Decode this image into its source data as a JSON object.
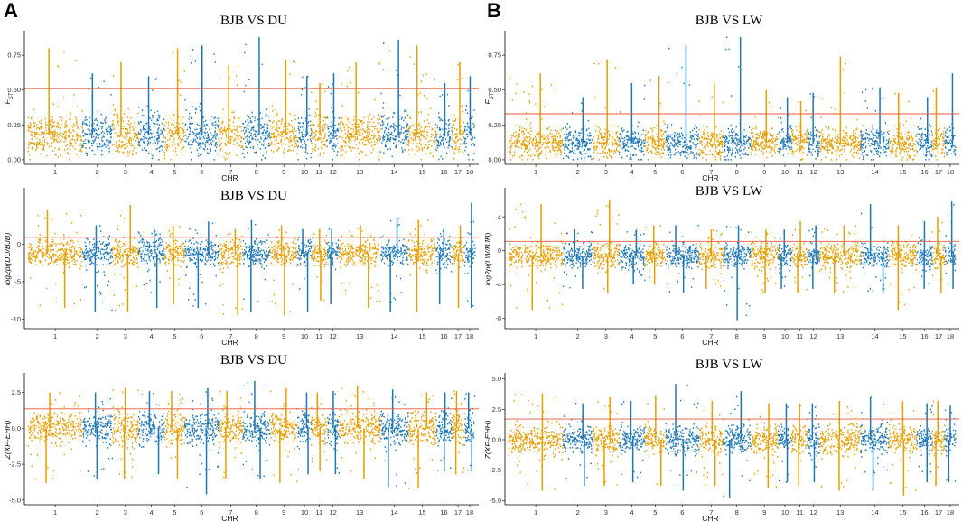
{
  "figure": {
    "panel_letters": [
      "A",
      "B"
    ]
  },
  "colors": {
    "series_odd": "#E69F00",
    "series_even": "#1F78B4",
    "threshold": "#E8553A",
    "axis": "#000000"
  },
  "chart_data": [
    {
      "type": "scatter",
      "subtype": "manhattan",
      "title": "BJB VS DU",
      "xlabel": "CHR",
      "ylabel": "FST",
      "ylabel_main": "F",
      "ylabel_sub": "ST",
      "chromosomes": [
        "1",
        "2",
        "3",
        "4",
        "5",
        "6",
        "7",
        "8",
        "9",
        "10",
        "11",
        "12",
        "13",
        "14",
        "15",
        "16",
        "17",
        "18"
      ],
      "chromosome_sizes": [
        274,
        151,
        132,
        130,
        104,
        170,
        121,
        138,
        139,
        69,
        79,
        61,
        208,
        141,
        140,
        79,
        63,
        55
      ],
      "yticks": [
        0.0,
        0.25,
        0.5,
        0.75
      ],
      "ytick_labels": [
        "0.00",
        "0.25",
        "0.50",
        "0.75"
      ],
      "ylim": [
        -0.02,
        0.9
      ],
      "threshold": 0.51,
      "base_mean": 0.18,
      "base_spread": 0.14,
      "chr_peaks": [
        0.8,
        0.62,
        0.7,
        0.6,
        0.8,
        0.82,
        0.68,
        0.88,
        0.72,
        0.6,
        0.55,
        0.62,
        0.7,
        0.86,
        0.82,
        0.55,
        0.7,
        0.6
      ]
    },
    {
      "type": "scatter",
      "subtype": "manhattan",
      "title": "BJB VS LW",
      "xlabel": "CHR",
      "ylabel": "FST",
      "ylabel_main": "F",
      "ylabel_sub": "ST",
      "chromosomes": [
        "1",
        "2",
        "3",
        "4",
        "5",
        "6",
        "7",
        "8",
        "9",
        "10",
        "11",
        "12",
        "13",
        "14",
        "15",
        "16",
        "17",
        "18"
      ],
      "chromosome_sizes": [
        274,
        151,
        132,
        130,
        104,
        170,
        121,
        138,
        139,
        69,
        79,
        61,
        208,
        141,
        140,
        79,
        63,
        55
      ],
      "yticks": [
        0.0,
        0.25,
        0.5,
        0.75
      ],
      "ytick_labels": [
        "0.00",
        "0.25",
        "0.50",
        "0.75"
      ],
      "ylim": [
        -0.02,
        0.9
      ],
      "threshold": 0.33,
      "base_mean": 0.12,
      "base_spread": 0.1,
      "chr_peaks": [
        0.62,
        0.45,
        0.72,
        0.55,
        0.6,
        0.82,
        0.55,
        0.88,
        0.5,
        0.45,
        0.42,
        0.48,
        0.74,
        0.52,
        0.48,
        0.45,
        0.52,
        0.62
      ]
    },
    {
      "type": "scatter",
      "subtype": "manhattan",
      "title": "BJB VS DU",
      "xlabel": "CHR",
      "ylabel": "log2pi(DU/BJB)",
      "chromosomes": [
        "1",
        "2",
        "3",
        "4",
        "5",
        "6",
        "7",
        "8",
        "9",
        "10",
        "11",
        "12",
        "13",
        "14",
        "15",
        "16",
        "17",
        "18"
      ],
      "chromosome_sizes": [
        274,
        151,
        132,
        130,
        104,
        170,
        121,
        138,
        139,
        69,
        79,
        61,
        208,
        141,
        140,
        79,
        63,
        55
      ],
      "yticks": [
        -10,
        -5,
        0
      ],
      "ytick_labels": [
        "-10",
        "-5",
        "0"
      ],
      "ylim": [
        -11,
        7
      ],
      "threshold": 0.9,
      "base_mean": -1.2,
      "base_spread": 1.6,
      "chr_peaks": [
        4.5,
        2.5,
        5.2,
        2.0,
        2.5,
        3.0,
        2.0,
        3.2,
        2.5,
        2.0,
        2.0,
        2.0,
        2.5,
        3.5,
        3.2,
        2.0,
        2.5,
        5.5
      ],
      "chr_troughs": [
        -8.5,
        -9.0,
        -9.0,
        -8.5,
        -8.0,
        -8.5,
        -9.5,
        -9.0,
        -9.5,
        -9.0,
        -7.5,
        -8.0,
        -8.5,
        -9.0,
        -9.0,
        -8.0,
        -8.5,
        -8.5
      ]
    },
    {
      "type": "scatter",
      "subtype": "manhattan",
      "title": "BJB VS LW",
      "xlabel": "CHR",
      "ylabel": "log2pi(LW/BJB)",
      "chromosomes": [
        "1",
        "2",
        "3",
        "4",
        "5",
        "6",
        "7",
        "8",
        "9",
        "10",
        "11",
        "12",
        "13",
        "14",
        "15",
        "16",
        "17",
        "18"
      ],
      "chromosome_sizes": [
        274,
        151,
        132,
        130,
        104,
        170,
        121,
        138,
        139,
        69,
        79,
        61,
        208,
        141,
        140,
        79,
        63,
        55
      ],
      "yticks": [
        -8,
        -4,
        0,
        4
      ],
      "ytick_labels": [
        "-8",
        "-4",
        "0",
        "4"
      ],
      "ylim": [
        -9,
        7
      ],
      "threshold": 1.1,
      "base_mean": -0.6,
      "base_spread": 1.3,
      "chr_peaks": [
        5.5,
        2.5,
        6.0,
        2.5,
        3.0,
        3.0,
        2.5,
        3.0,
        2.5,
        2.5,
        3.5,
        3.0,
        3.0,
        5.5,
        3.0,
        3.5,
        4.0,
        5.8
      ],
      "chr_troughs": [
        -7.0,
        -4.5,
        -5.0,
        -4.0,
        -4.0,
        -5.0,
        -4.5,
        -8.2,
        -5.0,
        -4.5,
        -5.0,
        -4.5,
        -5.0,
        -5.0,
        -7.0,
        -4.5,
        -5.0,
        -4.5
      ]
    },
    {
      "type": "scatter",
      "subtype": "manhattan",
      "title": "BJB VS DU",
      "xlabel": "CHR",
      "ylabel": "Z(XP-EHH)",
      "chromosomes": [
        "1",
        "2",
        "3",
        "4",
        "5",
        "6",
        "7",
        "8",
        "9",
        "10",
        "11",
        "12",
        "13",
        "14",
        "15",
        "16",
        "17",
        "18"
      ],
      "chromosome_sizes": [
        274,
        151,
        132,
        130,
        104,
        170,
        121,
        138,
        139,
        69,
        79,
        61,
        208,
        141,
        140,
        79,
        63,
        55
      ],
      "yticks": [
        -5.0,
        -2.5,
        0.0,
        2.5
      ],
      "ytick_labels": [
        "-5.0",
        "-2.5",
        "0.0",
        "2.5"
      ],
      "ylim": [
        -5.2,
        3.6
      ],
      "threshold": 1.35,
      "base_mean": 0.0,
      "base_spread": 1.0,
      "chr_peaks": [
        2.5,
        2.5,
        2.8,
        2.6,
        2.6,
        2.8,
        2.6,
        3.3,
        2.8,
        2.5,
        2.5,
        2.6,
        2.9,
        2.7,
        2.5,
        2.5,
        2.6,
        2.5
      ],
      "chr_troughs": [
        -3.8,
        -3.5,
        -3.5,
        -3.2,
        -3.5,
        -4.6,
        -3.5,
        -3.5,
        -3.8,
        -3.2,
        -3.0,
        -3.2,
        -3.5,
        -4.1,
        -4.2,
        -3.0,
        -3.2,
        -3.0
      ]
    },
    {
      "type": "scatter",
      "subtype": "manhattan",
      "title": "BJB VS LW",
      "xlabel": "CHR",
      "ylabel": "Z(XP-EHH)",
      "chromosomes": [
        "1",
        "2",
        "3",
        "4",
        "5",
        "6",
        "7",
        "8",
        "9",
        "10",
        "11",
        "12",
        "13",
        "14",
        "15",
        "16",
        "17",
        "18"
      ],
      "chromosome_sizes": [
        274,
        151,
        132,
        130,
        104,
        170,
        121,
        138,
        139,
        69,
        79,
        61,
        208,
        141,
        140,
        79,
        63,
        55
      ],
      "yticks": [
        -5.0,
        -2.5,
        0.0,
        2.5,
        5.0
      ],
      "ytick_labels": [
        "-5.0",
        "-2.5",
        "0.0",
        "2.5",
        "5.0"
      ],
      "ylim": [
        -5.2,
        5.2
      ],
      "threshold": 1.7,
      "base_mean": 0.0,
      "base_spread": 1.0,
      "chr_peaks": [
        3.8,
        3.0,
        3.5,
        3.2,
        3.6,
        4.6,
        3.2,
        4.0,
        3.0,
        3.0,
        3.0,
        3.0,
        3.2,
        3.5,
        3.2,
        3.0,
        3.2,
        2.8
      ],
      "chr_troughs": [
        -4.2,
        -3.8,
        -3.8,
        -3.5,
        -3.8,
        -4.2,
        -3.8,
        -4.8,
        -4.0,
        -3.5,
        -3.8,
        -3.5,
        -4.2,
        -4.2,
        -4.6,
        -3.5,
        -3.8,
        -3.5
      ]
    }
  ]
}
